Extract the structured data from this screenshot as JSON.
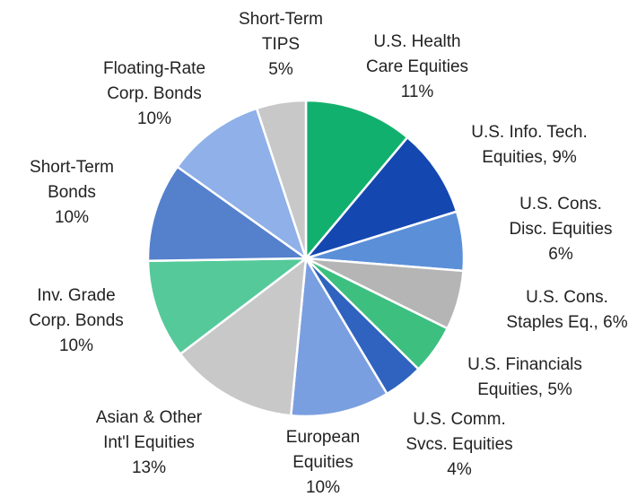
{
  "chart_data": {
    "type": "pie",
    "categories": [
      [
        "U.S. Health",
        "Care Equities"
      ],
      [
        "U.S. Info. Tech.",
        "Equities,"
      ],
      [
        "U.S. Cons.",
        "Disc. Equities"
      ],
      [
        "U.S. Cons.",
        "Staples Eq.,"
      ],
      [
        "U.S. Financials",
        "Equities,"
      ],
      [
        "U.S. Comm.",
        "Svcs. Equities"
      ],
      [
        "European",
        "Equities"
      ],
      [
        "Asian & Other",
        "Int'l Equities"
      ],
      [
        "Inv. Grade",
        "Corp. Bonds"
      ],
      [
        "Short-Term",
        "Bonds"
      ],
      [
        "Floating-Rate",
        "Corp. Bonds"
      ],
      [
        "Short-Term",
        "TIPS"
      ]
    ],
    "values": [
      11,
      9,
      6,
      6,
      5,
      4,
      10,
      13,
      10,
      10,
      10,
      5
    ],
    "value_labels": [
      "11%",
      "9%",
      "6%",
      "6%",
      "5%",
      "4%",
      "10%",
      "13%",
      "10%",
      "10%",
      "10%",
      "5%"
    ],
    "colors": [
      "#12b06e",
      "#1447b0",
      "#5b8fd8",
      "#b5b5b5",
      "#3dbf80",
      "#2f63bf",
      "#7a9fe0",
      "#c8c8c8",
      "#55c99a",
      "#5580cc",
      "#8fb0e8",
      "#c8c8c8"
    ]
  }
}
